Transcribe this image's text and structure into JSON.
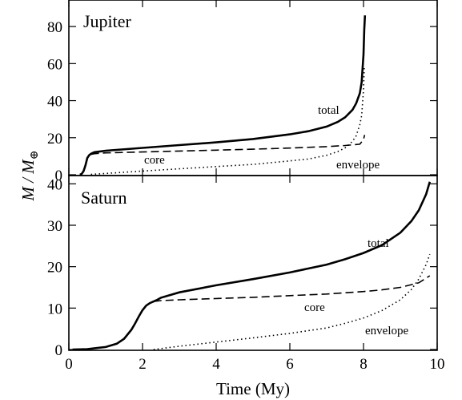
{
  "chart_data": {
    "type": "line",
    "xlabel": "Time (My)",
    "ylabel": "M/M⊕",
    "ylabel_parts": {
      "main": "M / M",
      "sub": "⊕"
    },
    "xlim": [
      0,
      10
    ],
    "x_ticks": [
      0,
      2,
      4,
      6,
      8,
      10
    ],
    "panels": [
      {
        "title": "Jupiter",
        "ylim": [
          0,
          90
        ],
        "y_ticks": [
          0,
          20,
          40,
          60,
          80
        ],
        "series": [
          {
            "name": "total",
            "x": [
              0.3,
              0.35,
              0.4,
              0.45,
              0.5,
              0.55,
              0.6,
              0.65,
              0.7,
              1.0,
              2.0,
              3.0,
              4.0,
              5.0,
              6.0,
              6.5,
              7.0,
              7.3,
              7.5,
              7.7,
              7.8,
              7.9,
              7.95,
              8.0,
              8.02,
              8.04
            ],
            "y": [
              0,
              0.5,
              2,
              5,
              9,
              10.5,
              11.3,
              11.8,
              12.2,
              13.0,
              14.5,
              16.0,
              17.5,
              19.3,
              21.8,
              23.5,
              26.0,
              28.5,
              31.0,
              35.0,
              38.5,
              44.0,
              50.0,
              65.0,
              78.0,
              86.0
            ]
          },
          {
            "name": "core",
            "x": [
              0.6,
              0.7,
              1.0,
              2.0,
              3.0,
              4.0,
              5.0,
              6.0,
              7.0,
              7.5,
              7.9,
              8.0,
              8.03
            ],
            "y": [
              11.0,
              11.4,
              11.8,
              12.3,
              12.8,
              13.3,
              13.8,
              14.4,
              15.2,
              15.8,
              16.5,
              19.0,
              21.5
            ]
          },
          {
            "name": "envelope",
            "x": [
              0.6,
              1.0,
              2.0,
              3.0,
              4.0,
              5.0,
              6.0,
              6.5,
              7.0,
              7.3,
              7.5,
              7.7,
              7.8,
              7.9,
              7.95,
              8.0,
              8.02
            ],
            "y": [
              0.2,
              0.7,
              2.0,
              3.2,
              4.4,
              5.6,
              7.5,
              8.5,
              10.5,
              12.5,
              14.5,
              18.0,
              21.0,
              27.0,
              32.0,
              46.0,
              58.0
            ]
          }
        ]
      },
      {
        "title": "Saturn",
        "ylim": [
          0,
          42
        ],
        "y_ticks": [
          0,
          10,
          20,
          30,
          40
        ],
        "series": [
          {
            "name": "total",
            "x": [
              0.1,
              0.5,
              1.0,
              1.3,
              1.5,
              1.7,
              1.8,
              1.9,
              2.0,
              2.1,
              2.2,
              2.3,
              2.4,
              2.5,
              3.0,
              4.0,
              5.0,
              6.0,
              7.0,
              7.5,
              8.0,
              8.5,
              9.0,
              9.3,
              9.5,
              9.7,
              9.8
            ],
            "y": [
              0,
              0.1,
              0.6,
              1.4,
              2.6,
              4.8,
              6.3,
              8.0,
              9.5,
              10.6,
              11.2,
              11.6,
              12.0,
              12.5,
              13.8,
              15.5,
              17.0,
              18.6,
              20.5,
              21.8,
              23.3,
              25.2,
              28.2,
              31.0,
              33.6,
              37.5,
              40.5
            ]
          },
          {
            "name": "core",
            "x": [
              2.3,
              2.5,
              3.0,
              4.0,
              5.0,
              6.0,
              7.0,
              8.0,
              8.5,
              9.0,
              9.5,
              9.8
            ],
            "y": [
              11.6,
              11.8,
              12.0,
              12.3,
              12.6,
              13.0,
              13.4,
              14.0,
              14.4,
              15.0,
              16.1,
              17.8
            ]
          },
          {
            "name": "envelope",
            "x": [
              2.3,
              3.0,
              4.0,
              5.0,
              6.0,
              7.0,
              7.5,
              8.0,
              8.5,
              9.0,
              9.3,
              9.5,
              9.7,
              9.8
            ],
            "y": [
              0,
              0.8,
              1.8,
              2.8,
              3.9,
              5.2,
              6.3,
              7.6,
              9.4,
              12.0,
              14.5,
              17.0,
              20.5,
              23.0
            ]
          }
        ]
      }
    ]
  }
}
